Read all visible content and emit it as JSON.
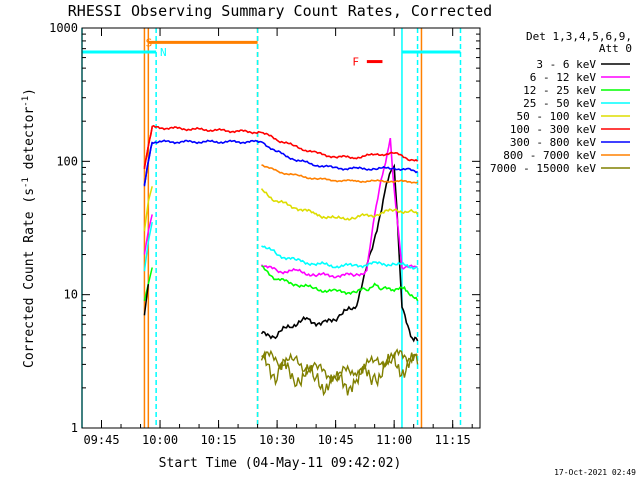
{
  "chart_data": {
    "type": "line",
    "title": "RHESSI Observing Summary Count Rates, Corrected",
    "xlabel": "Start Time (04-May-11 09:42:02)",
    "ylabel": "Corrected Count Rate (s⁻¹ detector⁻¹)",
    "ylabel_parts": {
      "a": "Corrected Count Rate (s",
      "b": "-1",
      "c": " detector",
      "d": "-1",
      "e": ")"
    },
    "ylog": true,
    "xlim": [
      "09:40",
      "11:22"
    ],
    "ylim": [
      1,
      1000
    ],
    "x_ticks": [
      "09:45",
      "10:00",
      "10:15",
      "10:30",
      "10:45",
      "11:00",
      "11:15"
    ],
    "y_ticks": [
      "1",
      "10",
      "100",
      "1000"
    ],
    "grid": false,
    "timestamp": "17-Oct-2021 02:49",
    "legend": {
      "header": [
        "Det 1,3,4,5,6,9,",
        "Att 0"
      ],
      "placement": "right"
    },
    "series": [
      {
        "name": "3 - 6 keV",
        "color": "#000000",
        "points": [
          [
            "10:26",
            5
          ],
          [
            "10:30",
            5
          ],
          [
            "10:34",
            6
          ],
          [
            "10:38",
            6.5
          ],
          [
            "10:42",
            6
          ],
          [
            "10:46",
            7
          ],
          [
            "10:50",
            8
          ],
          [
            "10:54",
            20
          ],
          [
            "10:58",
            65
          ],
          [
            "11:00",
            95
          ],
          [
            "11:01",
            30
          ],
          [
            "11:02",
            8
          ],
          [
            "11:05",
            4.5
          ],
          [
            "11:06",
            4.5
          ]
        ]
      },
      {
        "name": "6 - 12 keV",
        "color": "#ff00ff",
        "points": [
          [
            "10:26",
            17
          ],
          [
            "10:30",
            15
          ],
          [
            "10:35",
            15
          ],
          [
            "10:40",
            14
          ],
          [
            "10:45",
            14
          ],
          [
            "10:50",
            14
          ],
          [
            "10:53",
            15
          ],
          [
            "10:55",
            40
          ],
          [
            "10:57",
            80
          ],
          [
            "10:59",
            145
          ],
          [
            "11:00",
            60
          ],
          [
            "11:02",
            16
          ],
          [
            "11:06",
            16
          ]
        ]
      },
      {
        "name": "12 - 25 keV",
        "color": "#00ff00",
        "points": [
          [
            "10:26",
            16
          ],
          [
            "10:30",
            13
          ],
          [
            "10:35",
            12
          ],
          [
            "10:40",
            11
          ],
          [
            "10:45",
            10.5
          ],
          [
            "10:50",
            10.5
          ],
          [
            "10:53",
            11
          ],
          [
            "10:55",
            12
          ],
          [
            "10:57",
            11
          ],
          [
            "11:00",
            11
          ],
          [
            "11:03",
            11
          ],
          [
            "11:06",
            9
          ]
        ]
      },
      {
        "name": "25 - 50 keV",
        "color": "#00ffff",
        "points": [
          [
            "10:26",
            24
          ],
          [
            "10:30",
            20
          ],
          [
            "10:35",
            18
          ],
          [
            "10:40",
            17
          ],
          [
            "10:45",
            16.5
          ],
          [
            "10:50",
            16.5
          ],
          [
            "10:55",
            17
          ],
          [
            "11:00",
            17
          ],
          [
            "11:06",
            16
          ]
        ]
      },
      {
        "name": "50 - 100 keV",
        "color": "#dddd00",
        "points": [
          [
            "10:26",
            60
          ],
          [
            "10:30",
            50
          ],
          [
            "10:35",
            45
          ],
          [
            "10:40",
            40
          ],
          [
            "10:45",
            37
          ],
          [
            "10:50",
            38
          ],
          [
            "10:55",
            40
          ],
          [
            "11:00",
            43
          ],
          [
            "11:04",
            42
          ],
          [
            "11:06",
            40
          ]
        ]
      },
      {
        "name": "100 - 300 keV",
        "color": "#ff0000",
        "points": [
          [
            "09:56",
            90
          ],
          [
            "09:57",
            130
          ],
          [
            "09:58",
            180
          ],
          [
            "10:26",
            165
          ],
          [
            "10:30",
            145
          ],
          [
            "10:35",
            128
          ],
          [
            "10:40",
            115
          ],
          [
            "10:45",
            108
          ],
          [
            "10:50",
            107
          ],
          [
            "10:55",
            112
          ],
          [
            "11:00",
            115
          ],
          [
            "11:04",
            104
          ],
          [
            "11:06",
            100
          ]
        ]
      },
      {
        "name": "300 - 800 keV",
        "color": "#0000ff",
        "points": [
          [
            "09:56",
            65
          ],
          [
            "09:57",
            100
          ],
          [
            "09:58",
            140
          ],
          [
            "10:26",
            140
          ],
          [
            "10:30",
            118
          ],
          [
            "10:35",
            102
          ],
          [
            "10:40",
            94
          ],
          [
            "10:45",
            89
          ],
          [
            "10:50",
            88
          ],
          [
            "10:55",
            88
          ],
          [
            "11:00",
            89
          ],
          [
            "11:04",
            86
          ],
          [
            "11:06",
            84
          ]
        ]
      },
      {
        "name": "800 - 7000 keV",
        "color": "#ff8000",
        "points": [
          [
            "10:26",
            95
          ],
          [
            "10:30",
            84
          ],
          [
            "10:35",
            78
          ],
          [
            "10:40",
            74
          ],
          [
            "10:45",
            72
          ],
          [
            "10:50",
            71
          ],
          [
            "10:55",
            71
          ],
          [
            "11:00",
            71
          ],
          [
            "11:06",
            70
          ]
        ]
      },
      {
        "name": "7000 - 15000 keV",
        "color": "#808000",
        "points": [
          [
            "10:26",
            3
          ],
          [
            "10:30",
            2.7
          ],
          [
            "10:35",
            2.6
          ],
          [
            "10:40",
            2.3
          ],
          [
            "10:45",
            2.1
          ],
          [
            "10:50",
            2.3
          ],
          [
            "10:55",
            2.6
          ],
          [
            "11:00",
            2.9
          ],
          [
            "11:06",
            3
          ]
        ]
      }
    ],
    "early_spikes": [
      {
        "color": "#ff0000",
        "x": [
          "09:56",
          "09:57",
          "09:58"
        ],
        "y": [
          90,
          130,
          180
        ]
      },
      {
        "color": "#0000ff",
        "x": [
          "09:56",
          "09:57",
          "09:58"
        ],
        "y": [
          65,
          100,
          140
        ]
      },
      {
        "color": "#dddd00",
        "x": [
          "09:56",
          "09:57",
          "09:58"
        ],
        "y": [
          30,
          50,
          65
        ]
      },
      {
        "color": "#00ffff",
        "x": [
          "09:56",
          "09:57",
          "09:58"
        ],
        "y": [
          15,
          25,
          35
        ]
      },
      {
        "color": "#ff00ff",
        "x": [
          "09:56",
          "09:57",
          "09:58"
        ],
        "y": [
          20,
          30,
          40
        ]
      },
      {
        "color": "#00ff00",
        "x": [
          "09:56",
          "09:57",
          "09:58"
        ],
        "y": [
          9,
          12,
          16
        ]
      },
      {
        "color": "#000000",
        "x": [
          "09:56",
          "09:57"
        ],
        "y": [
          7,
          12
        ]
      }
    ],
    "vertical_markers": [
      {
        "x": "09:40",
        "color": "#00ffff",
        "style": "solid"
      },
      {
        "x": "09:56",
        "color": "#ff8000",
        "style": "solid"
      },
      {
        "x": "09:57",
        "color": "#ff8000",
        "style": "solid"
      },
      {
        "x": "09:59",
        "color": "#00ffff",
        "style": "dashed"
      },
      {
        "x": "10:25",
        "color": "#ff8000",
        "style": "dashed"
      },
      {
        "x": "10:25",
        "color": "#00ffff",
        "style": "dashed"
      },
      {
        "x": "11:02",
        "color": "#00ffff",
        "style": "solid"
      },
      {
        "x": "11:06",
        "color": "#00ffff",
        "style": "dashed"
      },
      {
        "x": "11:07",
        "color": "#ff8000",
        "style": "solid"
      },
      {
        "x": "11:17",
        "color": "#00ffff",
        "style": "dashed"
      }
    ],
    "flag_bars": [
      {
        "label": "S",
        "color": "#ff8000",
        "x": [
          "09:57",
          "10:25"
        ],
        "y": 780
      },
      {
        "label": "N",
        "color": "#00ffff",
        "x": [
          "09:40",
          "09:59"
        ],
        "y": 660
      },
      {
        "label": "N",
        "color": "#00ffff",
        "x": [
          "11:02",
          "11:17"
        ],
        "y": 660
      },
      {
        "label": "F",
        "color": "#ff0000",
        "x": [
          "10:53",
          "10:57"
        ],
        "y": 560
      }
    ],
    "flag_labels": [
      {
        "text": "S",
        "color": "#ff8000",
        "x": "09:58",
        "y": 780,
        "anchor": "end"
      },
      {
        "text": "N",
        "color": "#00ffff",
        "x": "10:00",
        "y": 660,
        "anchor": "start"
      },
      {
        "text": "F",
        "color": "#ff0000",
        "x": "10:51",
        "y": 560,
        "anchor": "end"
      }
    ]
  }
}
